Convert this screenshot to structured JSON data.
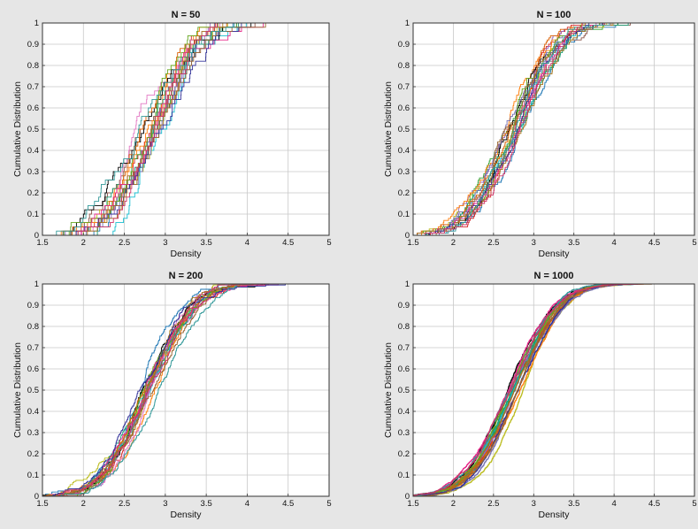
{
  "figure": {
    "background": "#e6e6e6",
    "axes_background": "#ffffff",
    "grid_color": "#c8c8c8",
    "series_colors": [
      "#1f77b4",
      "#d62728",
      "#2ca02c",
      "#9467bd",
      "#8c564b",
      "#17becf",
      "#bcbd22",
      "#ff7f0e",
      "#e377c2",
      "#000000",
      "#1a9e77",
      "#7570b3",
      "#d95f02",
      "#66a61e",
      "#e7298a",
      "#a6761d",
      "#333399",
      "#996633",
      "#339999",
      "#cc3366"
    ]
  },
  "chart_data": [
    {
      "type": "line",
      "step": true,
      "title": "N = 50",
      "xlabel": "Density",
      "ylabel": "Cumulative Distribution",
      "xlim": [
        1.5,
        5
      ],
      "ylim": [
        0,
        1
      ],
      "xticks": [
        "1.5",
        "2",
        "2.5",
        "3",
        "3.5",
        "4",
        "4.5",
        "5"
      ],
      "yticks": [
        "0",
        "0.1",
        "0.2",
        "0.3",
        "0.4",
        "0.5",
        "0.6",
        "0.7",
        "0.8",
        "0.9",
        "1"
      ],
      "grid": true,
      "n_series": 20,
      "series_shape": {
        "sample_size": 50,
        "median": 2.85,
        "spread": 0.45,
        "curve_min": 1.55,
        "curve_max": 4.4
      },
      "series": [
        {
          "x": [
            1.55,
            2.0,
            2.2,
            2.4,
            2.6,
            2.8,
            3.0,
            3.2,
            3.4,
            3.6,
            3.8,
            4.0,
            4.4
          ],
          "y": [
            0.02,
            0.04,
            0.08,
            0.18,
            0.32,
            0.48,
            0.62,
            0.75,
            0.85,
            0.93,
            0.97,
            0.99,
            1.0
          ]
        }
      ]
    },
    {
      "type": "line",
      "step": true,
      "title": "N = 100",
      "xlabel": "Density",
      "ylabel": "Cumulative Distribution",
      "xlim": [
        1.5,
        5
      ],
      "ylim": [
        0,
        1
      ],
      "xticks": [
        "1.5",
        "2",
        "2.5",
        "3",
        "3.5",
        "4",
        "4.5",
        "5"
      ],
      "yticks": [
        "0",
        "0.1",
        "0.2",
        "0.3",
        "0.4",
        "0.5",
        "0.6",
        "0.7",
        "0.8",
        "0.9",
        "1"
      ],
      "grid": true,
      "n_series": 20,
      "series_shape": {
        "sample_size": 100,
        "median": 2.75,
        "spread": 0.45,
        "curve_min": 1.55,
        "curve_max": 4.5
      },
      "series": [
        {
          "x": [
            1.55,
            2.0,
            2.2,
            2.4,
            2.6,
            2.8,
            3.0,
            3.2,
            3.4,
            3.6,
            3.8,
            4.0,
            4.5
          ],
          "y": [
            0.01,
            0.04,
            0.1,
            0.2,
            0.36,
            0.52,
            0.68,
            0.8,
            0.89,
            0.95,
            0.98,
            0.995,
            1.0
          ]
        }
      ]
    },
    {
      "type": "line",
      "step": true,
      "title": "N = 200",
      "xlabel": "Density",
      "ylabel": "Cumulative Distribution",
      "xlim": [
        1.5,
        5
      ],
      "ylim": [
        0,
        1
      ],
      "xticks": [
        "1.5",
        "2",
        "2.5",
        "3",
        "3.5",
        "4",
        "4.5",
        "5"
      ],
      "yticks": [
        "0",
        "0.1",
        "0.2",
        "0.3",
        "0.4",
        "0.5",
        "0.6",
        "0.7",
        "0.8",
        "0.9",
        "1"
      ],
      "grid": true,
      "n_series": 20,
      "series_shape": {
        "sample_size": 200,
        "median": 2.8,
        "spread": 0.45,
        "curve_min": 1.5,
        "curve_max": 4.5
      },
      "series": [
        {
          "x": [
            1.5,
            1.8,
            2.0,
            2.2,
            2.4,
            2.6,
            2.8,
            3.0,
            3.2,
            3.4,
            3.6,
            3.8,
            4.0,
            4.5
          ],
          "y": [
            0.0,
            0.02,
            0.05,
            0.1,
            0.2,
            0.33,
            0.5,
            0.66,
            0.79,
            0.88,
            0.94,
            0.97,
            0.99,
            1.0
          ]
        }
      ]
    },
    {
      "type": "line",
      "step": true,
      "title": "N = 1000",
      "xlabel": "Density",
      "ylabel": "Cumulative Distribution",
      "xlim": [
        1.5,
        5
      ],
      "ylim": [
        0,
        1
      ],
      "xticks": [
        "1.5",
        "2",
        "2.5",
        "3",
        "3.5",
        "4",
        "4.5",
        "5"
      ],
      "yticks": [
        "0",
        "0.1",
        "0.2",
        "0.3",
        "0.4",
        "0.5",
        "0.6",
        "0.7",
        "0.8",
        "0.9",
        "1"
      ],
      "grid": true,
      "n_series": 20,
      "series_shape": {
        "sample_size": 1000,
        "median": 2.75,
        "spread": 0.45,
        "curve_min": 1.5,
        "curve_max": 4.8
      },
      "series": [
        {
          "x": [
            1.5,
            1.8,
            2.0,
            2.2,
            2.4,
            2.6,
            2.8,
            3.0,
            3.2,
            3.4,
            3.6,
            3.8,
            4.0,
            4.3
          ],
          "y": [
            0.0,
            0.02,
            0.05,
            0.11,
            0.22,
            0.37,
            0.53,
            0.68,
            0.8,
            0.89,
            0.95,
            0.98,
            0.99,
            1.0
          ]
        }
      ]
    }
  ]
}
